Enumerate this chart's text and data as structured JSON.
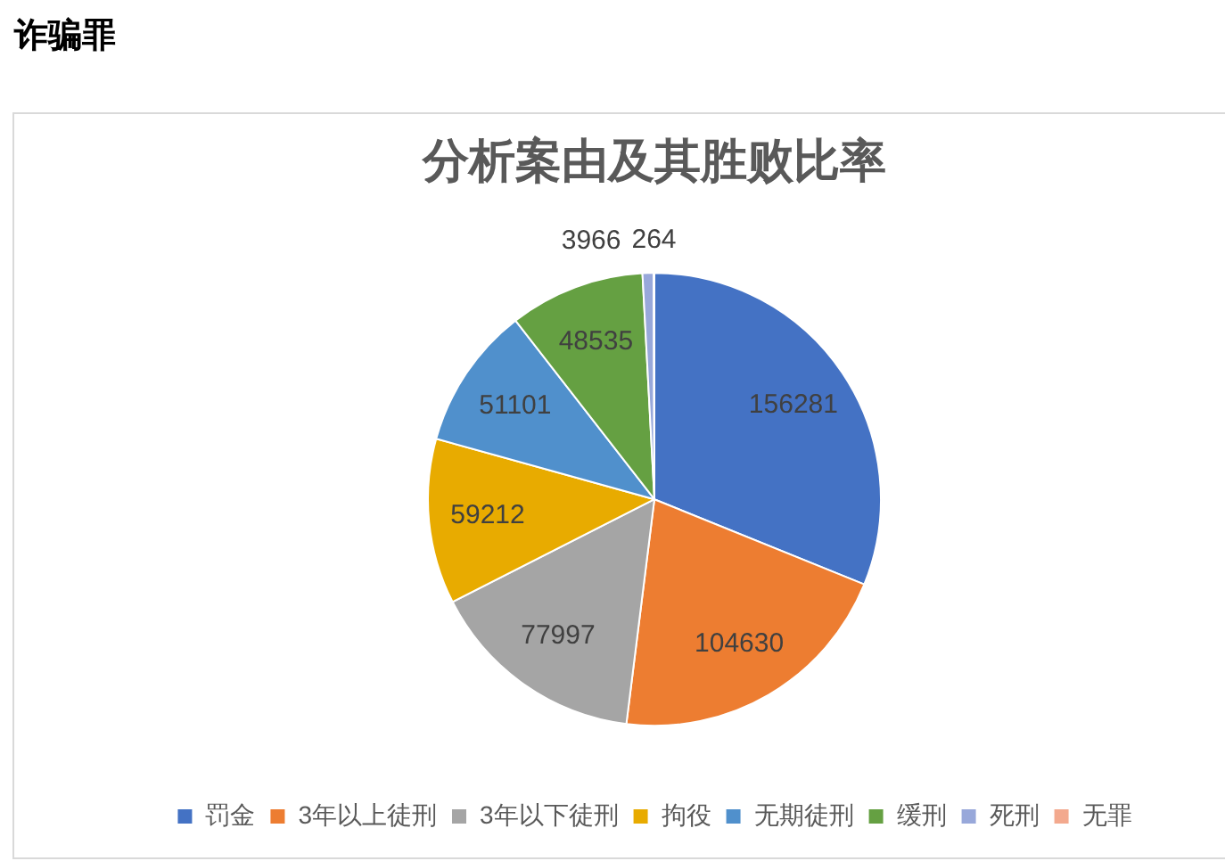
{
  "chart_data": {
    "type": "pie",
    "title": "分析案由及其胜败比率",
    "annotations": [
      "诈骗罪"
    ],
    "categories": [
      "罚金",
      "3年以上徒刑",
      "3年以下徒刑",
      "拘役",
      "无期徒刑",
      "缓刑",
      "死刑",
      "无罪"
    ],
    "values": [
      156281,
      104630,
      77997,
      59212,
      51101,
      48535,
      3966,
      264
    ],
    "colors": [
      "#4472c4",
      "#ed7d31",
      "#a5a5a5",
      "#e8ab00",
      "#5090cc",
      "#65a042",
      "#98a8da",
      "#f3a98e"
    ],
    "data_labels": true,
    "legend": "bottom"
  }
}
